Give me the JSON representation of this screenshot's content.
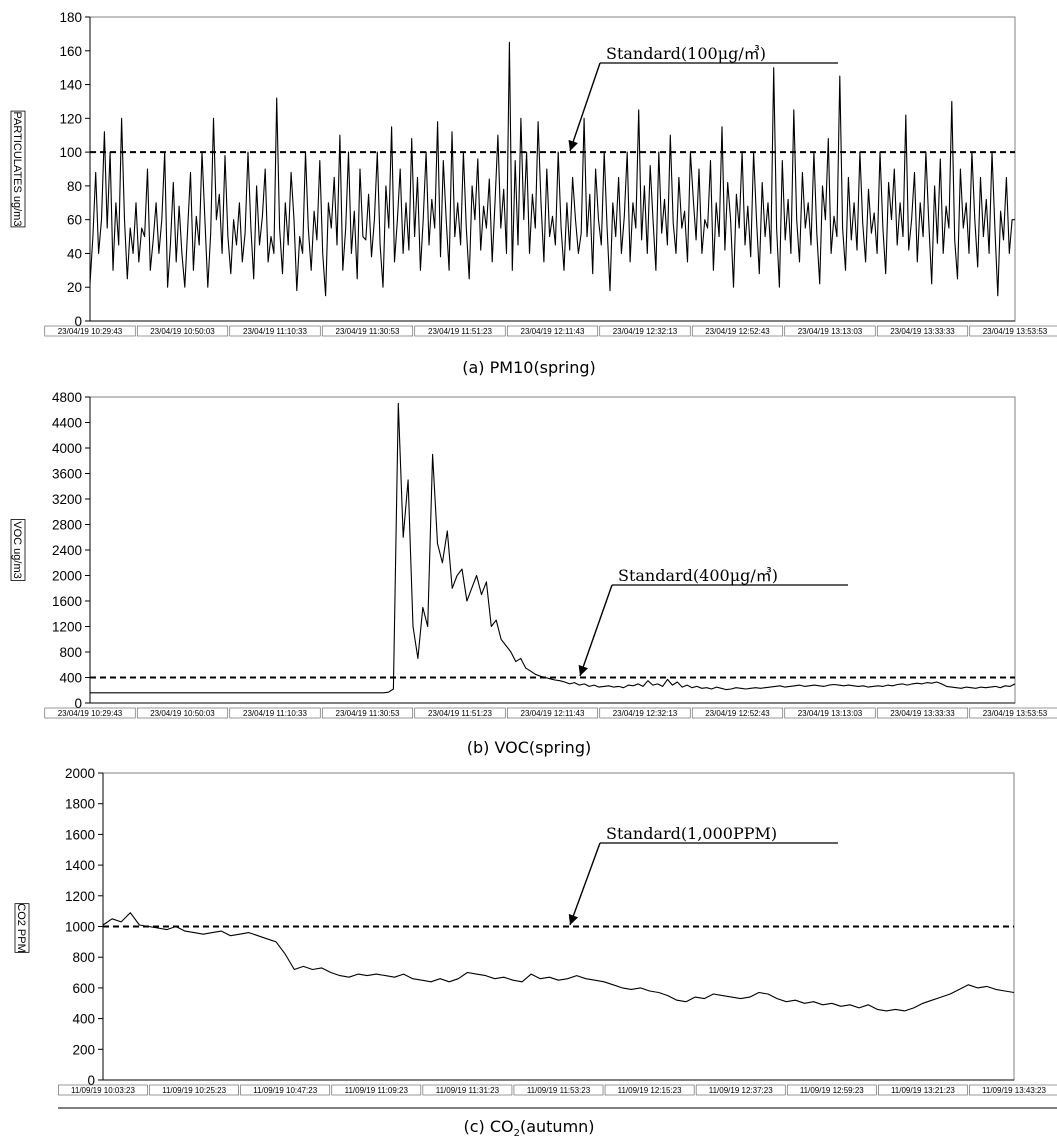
{
  "chart_data": [
    {
      "id": "pm10",
      "type": "line",
      "caption": "(a) PM10(spring)",
      "ylabel": "PARTICULATES ug/m3",
      "ylim": [
        0,
        180
      ],
      "yticks": [
        0,
        20,
        40,
        60,
        80,
        100,
        120,
        140,
        160,
        180
      ],
      "x_ticks": [
        "23/04/19 10:29:43",
        "23/04/19 10:50:03",
        "23/04/19 11:10:33",
        "23/04/19 11:30:53",
        "23/04/19 11:51:23",
        "23/04/19 12:11:43",
        "23/04/19 12:32:13",
        "23/04/19 12:52:43",
        "23/04/19 13:13:03",
        "23/04/19 13:33:33",
        "23/04/19 13:53:53"
      ],
      "standard": {
        "value": 100,
        "label": "Standard(100μg/㎥)"
      },
      "grid": false,
      "series": [
        {
          "values": [
            22,
            50,
            88,
            40,
            60,
            112,
            55,
            100,
            30,
            70,
            45,
            120,
            60,
            25,
            55,
            40,
            70,
            35,
            55,
            50,
            90,
            30,
            48,
            70,
            40,
            60,
            100,
            20,
            45,
            82,
            35,
            68,
            40,
            20,
            55,
            88,
            30,
            62,
            45,
            100,
            60,
            20,
            52,
            120,
            60,
            75,
            40,
            98,
            50,
            28,
            60,
            45,
            70,
            35,
            52,
            100,
            55,
            25,
            80,
            45,
            62,
            90,
            35,
            50,
            40,
            132,
            55,
            28,
            70,
            45,
            88,
            60,
            18,
            50,
            40,
            100,
            55,
            30,
            65,
            48,
            95,
            40,
            15,
            70,
            55,
            85,
            45,
            110,
            30,
            55,
            100,
            40,
            65,
            25,
            90,
            50,
            48,
            75,
            38,
            60,
            100,
            45,
            20,
            80,
            55,
            115,
            35,
            60,
            90,
            40,
            70,
            42,
            108,
            50,
            85,
            30,
            60,
            100,
            45,
            72,
            55,
            118,
            38,
            95,
            60,
            30,
            112,
            50,
            70,
            45,
            100,
            55,
            25,
            80,
            60,
            96,
            42,
            68,
            55,
            84,
            35,
            70,
            110,
            55,
            78,
            40,
            165,
            30,
            95,
            45,
            120,
            60,
            100,
            40,
            75,
            55,
            118,
            70,
            35,
            90,
            50,
            62,
            45,
            100,
            55,
            30,
            70,
            42,
            85,
            60,
            40,
            52,
            120,
            50,
            75,
            28,
            90,
            60,
            45,
            100,
            55,
            18,
            70,
            50,
            85,
            40,
            62,
            100,
            35,
            70,
            55,
            125,
            48,
            80,
            40,
            92,
            60,
            30,
            100,
            52,
            72,
            45,
            110,
            58,
            40,
            85,
            55,
            65,
            35,
            100,
            72,
            48,
            90,
            40,
            60,
            55,
            95,
            30,
            70,
            50,
            115,
            42,
            82,
            60,
            20,
            75,
            55,
            100,
            45,
            68,
            38,
            100,
            60,
            28,
            82,
            50,
            70,
            40,
            150,
            55,
            20,
            95,
            48,
            72,
            40,
            125,
            60,
            35,
            88,
            55,
            70,
            45,
            100,
            52,
            22,
            80,
            60,
            108,
            40,
            62,
            50,
            145,
            55,
            30,
            85,
            48,
            70,
            42,
            100,
            58,
            35,
            78,
            52,
            64,
            40,
            100,
            55,
            28,
            82,
            60,
            90,
            45,
            70,
            50,
            122,
            42,
            60,
            88,
            35,
            70,
            50,
            100,
            58,
            22,
            80,
            46,
            96,
            40,
            68,
            55,
            130,
            48,
            25,
            90,
            55,
            70,
            40,
            100,
            60,
            32,
            85,
            50,
            72,
            40,
            100,
            55,
            15,
            65,
            48,
            85,
            40,
            60,
            60
          ]
        }
      ]
    },
    {
      "id": "voc",
      "type": "line",
      "caption": "(b) VOC(spring)",
      "ylabel": "VOC ug/m3",
      "ylim": [
        0,
        4800
      ],
      "yticks": [
        0,
        400,
        800,
        1200,
        1600,
        2000,
        2400,
        2800,
        3200,
        3600,
        4000,
        4400,
        4800
      ],
      "x_ticks": [
        "23/04/19 10:29:43",
        "23/04/19 10:50:03",
        "23/04/19 11:10:33",
        "23/04/19 11:30:53",
        "23/04/19 11:51:23",
        "23/04/19 12:11:43",
        "23/04/19 12:32:13",
        "23/04/19 12:52:43",
        "23/04/19 13:13:03",
        "23/04/19 13:33:33",
        "23/04/19 13:53:53"
      ],
      "standard": {
        "value": 400,
        "label": "Standard(400μg/㎥)"
      },
      "grid": false,
      "series": [
        {
          "values": [
            160,
            160,
            160,
            160,
            160,
            160,
            160,
            160,
            160,
            160,
            160,
            160,
            160,
            160,
            160,
            160,
            160,
            160,
            160,
            160,
            160,
            160,
            160,
            160,
            160,
            160,
            160,
            160,
            160,
            160,
            160,
            160,
            160,
            160,
            160,
            160,
            160,
            160,
            160,
            160,
            160,
            160,
            160,
            160,
            160,
            160,
            160,
            160,
            160,
            160,
            160,
            160,
            160,
            160,
            160,
            160,
            160,
            160,
            160,
            160,
            160,
            170,
            220,
            4700,
            2600,
            3500,
            1200,
            700,
            1500,
            1200,
            3900,
            2500,
            2200,
            2700,
            1800,
            2000,
            2100,
            1600,
            1800,
            2000,
            1700,
            1900,
            1200,
            1300,
            1000,
            900,
            800,
            650,
            700,
            550,
            500,
            450,
            420,
            400,
            380,
            360,
            350,
            330,
            300,
            320,
            280,
            300,
            260,
            280,
            250,
            260,
            270,
            250,
            260,
            240,
            280,
            270,
            300,
            260,
            350,
            280,
            300,
            260,
            370,
            280,
            330,
            250,
            280,
            240,
            260,
            230,
            240,
            220,
            250,
            230,
            210,
            220,
            240,
            230,
            220,
            230,
            240,
            230,
            240,
            250,
            260,
            270,
            250,
            260,
            270,
            280,
            260,
            270,
            280,
            270,
            260,
            280,
            290,
            280,
            270,
            280,
            270,
            260,
            270,
            250,
            260,
            270,
            260,
            280,
            270,
            290,
            300,
            280,
            300,
            310,
            300,
            320,
            310,
            330,
            300,
            260,
            250,
            240,
            230,
            250,
            240,
            230,
            250,
            240,
            250,
            260,
            240,
            270,
            260,
            300
          ]
        }
      ]
    },
    {
      "id": "co2",
      "type": "line",
      "caption": "(c) CO2(autumn)",
      "ylabel": "CO2 PPM",
      "ylim": [
        0,
        2000
      ],
      "yticks": [
        0,
        200,
        400,
        600,
        800,
        1000,
        1200,
        1400,
        1600,
        1800,
        2000
      ],
      "x_ticks": [
        "11/09/19 10:03:23",
        "11/09/19 10:25:23",
        "11/09/19 10:47:23",
        "11/09/19 11:09:23",
        "11/09/19 11:31:23",
        "11/09/19 11:53:23",
        "11/09/19 12:15:23",
        "11/09/19 12:37:23",
        "11/09/19 12:59:23",
        "11/09/19 13:21:23",
        "11/09/19 13:43:23"
      ],
      "standard": {
        "value": 1000,
        "label": "Standard(1,000PPM)"
      },
      "grid": false,
      "series": [
        {
          "values": [
            1010,
            1050,
            1030,
            1090,
            1010,
            1000,
            990,
            980,
            1000,
            970,
            960,
            950,
            960,
            970,
            940,
            950,
            960,
            940,
            920,
            900,
            820,
            720,
            740,
            720,
            730,
            700,
            680,
            670,
            690,
            680,
            690,
            680,
            670,
            690,
            660,
            650,
            640,
            660,
            640,
            660,
            700,
            690,
            680,
            660,
            670,
            650,
            640,
            690,
            660,
            670,
            650,
            660,
            680,
            660,
            650,
            640,
            620,
            600,
            590,
            600,
            580,
            570,
            550,
            520,
            510,
            540,
            530,
            560,
            550,
            540,
            530,
            540,
            570,
            560,
            530,
            510,
            520,
            500,
            510,
            490,
            500,
            480,
            490,
            470,
            490,
            460,
            450,
            460,
            450,
            470,
            500,
            520,
            540,
            560,
            590,
            620,
            600,
            610,
            590,
            580,
            570
          ]
        }
      ]
    }
  ]
}
